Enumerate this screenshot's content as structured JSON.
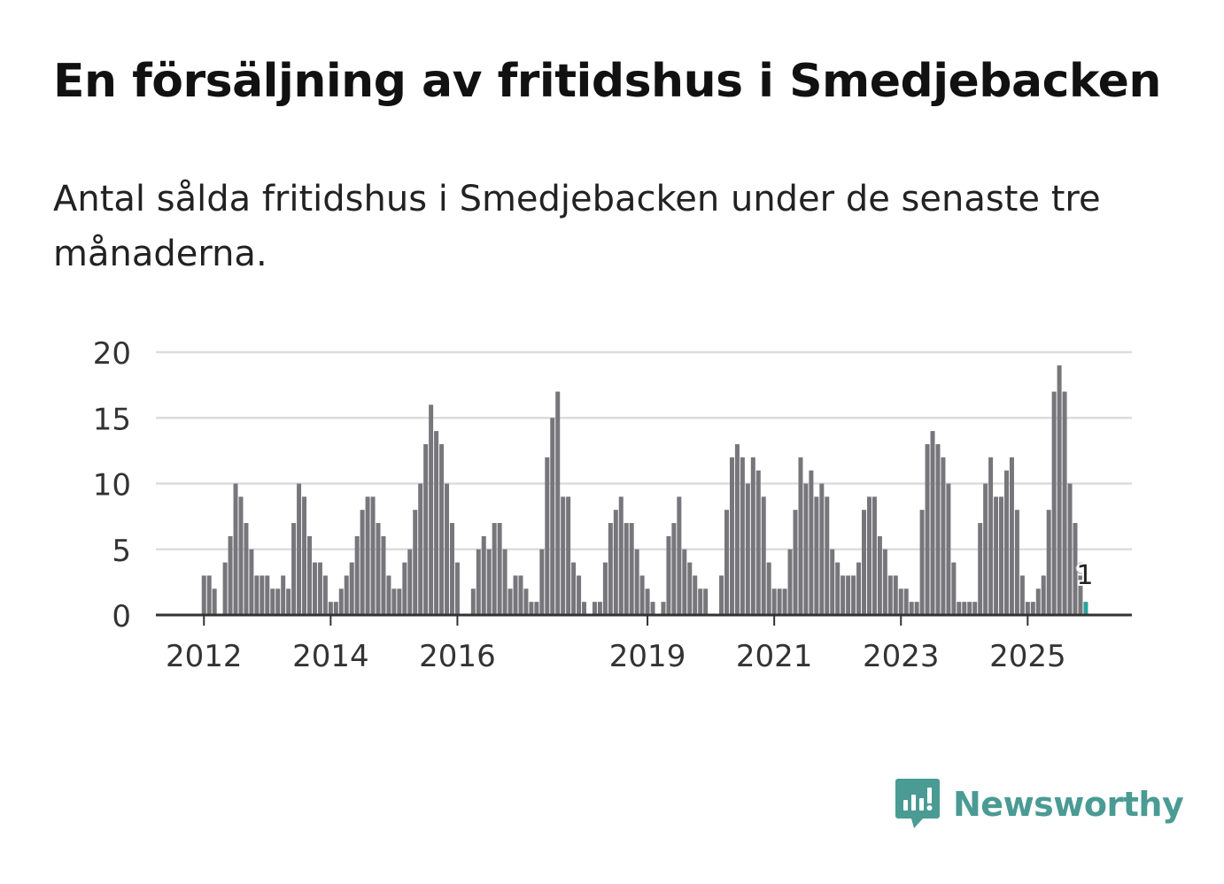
{
  "title": "En försäljning av fritidshus i Smedjebacken",
  "subtitle": "Antal sålda fritidshus i Smedjebacken under de senaste tre månaderna.",
  "brand": {
    "name": "Newsworthy",
    "color": "#4a9b94",
    "icon": "newsworthy-logo-icon"
  },
  "colors": {
    "bar": "#77767b",
    "highlight": "#2aa39a",
    "grid": "#dcdcdc",
    "axis": "#333333"
  },
  "chart_data": {
    "type": "bar",
    "start": "2011-12",
    "interval": "month",
    "values": [
      0,
      3,
      3,
      2,
      0,
      4,
      6,
      10,
      9,
      7,
      5,
      3,
      3,
      3,
      2,
      2,
      3,
      2,
      7,
      10,
      9,
      6,
      4,
      4,
      3,
      1,
      1,
      2,
      3,
      4,
      6,
      8,
      9,
      9,
      7,
      6,
      3,
      2,
      2,
      4,
      5,
      8,
      10,
      13,
      16,
      14,
      13,
      10,
      7,
      4,
      0,
      0,
      2,
      5,
      6,
      5,
      7,
      7,
      5,
      2,
      3,
      3,
      2,
      1,
      1,
      5,
      12,
      15,
      17,
      9,
      9,
      4,
      3,
      1,
      0,
      1,
      1,
      4,
      7,
      8,
      9,
      7,
      7,
      5,
      3,
      2,
      1,
      0,
      1,
      6,
      7,
      9,
      5,
      4,
      3,
      2,
      2,
      0,
      0,
      3,
      8,
      12,
      13,
      12,
      10,
      12,
      11,
      9,
      4,
      2,
      2,
      2,
      5,
      8,
      12,
      10,
      11,
      9,
      10,
      9,
      5,
      4,
      3,
      3,
      3,
      4,
      8,
      9,
      9,
      6,
      5,
      3,
      3,
      2,
      2,
      1,
      1,
      8,
      13,
      14,
      13,
      12,
      10,
      4,
      1,
      1,
      1,
      1,
      7,
      10,
      12,
      9,
      9,
      11,
      12,
      8,
      3,
      1,
      1,
      2,
      3,
      8,
      17,
      19,
      17,
      10,
      7,
      3,
      1
    ],
    "x_ticks": [
      "2012",
      "2014",
      "2016",
      "2019",
      "2021",
      "2023",
      "2025"
    ],
    "y_ticks": [
      0,
      5,
      10,
      15,
      20
    ],
    "ylim": [
      0,
      20
    ],
    "grid": true,
    "highlight": {
      "label": "1",
      "value": 1
    }
  }
}
